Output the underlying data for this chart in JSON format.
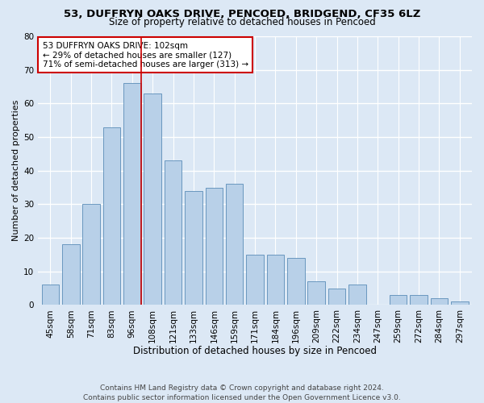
{
  "title1": "53, DUFFRYN OAKS DRIVE, PENCOED, BRIDGEND, CF35 6LZ",
  "title2": "Size of property relative to detached houses in Pencoed",
  "xlabel": "Distribution of detached houses by size in Pencoed",
  "ylabel": "Number of detached properties",
  "categories": [
    "45sqm",
    "58sqm",
    "71sqm",
    "83sqm",
    "96sqm",
    "108sqm",
    "121sqm",
    "133sqm",
    "146sqm",
    "159sqm",
    "171sqm",
    "184sqm",
    "196sqm",
    "209sqm",
    "222sqm",
    "234sqm",
    "247sqm",
    "259sqm",
    "272sqm",
    "284sqm",
    "297sqm"
  ],
  "values": [
    6,
    18,
    30,
    53,
    66,
    63,
    43,
    34,
    35,
    36,
    15,
    15,
    14,
    7,
    5,
    6,
    0,
    3,
    3,
    2,
    1
  ],
  "bar_color": "#b8d0e8",
  "bar_edge_color": "#5b8db8",
  "vline_x_index": 4,
  "vline_color": "#cc0000",
  "annotation_text": "53 DUFFRYN OAKS DRIVE: 102sqm\n← 29% of detached houses are smaller (127)\n71% of semi-detached houses are larger (313) →",
  "annotation_box_color": "#ffffff",
  "annotation_box_edge_color": "#cc0000",
  "ylim": [
    0,
    80
  ],
  "yticks": [
    0,
    10,
    20,
    30,
    40,
    50,
    60,
    70,
    80
  ],
  "footnote": "Contains HM Land Registry data © Crown copyright and database right 2024.\nContains public sector information licensed under the Open Government Licence v3.0.",
  "bg_color": "#dce8f5",
  "plot_bg_color": "#dce8f5",
  "grid_color": "#ffffff",
  "title1_fontsize": 9.5,
  "title2_fontsize": 8.5,
  "xlabel_fontsize": 8.5,
  "ylabel_fontsize": 8,
  "tick_fontsize": 7.5,
  "annotation_fontsize": 7.5,
  "footnote_fontsize": 6.5
}
